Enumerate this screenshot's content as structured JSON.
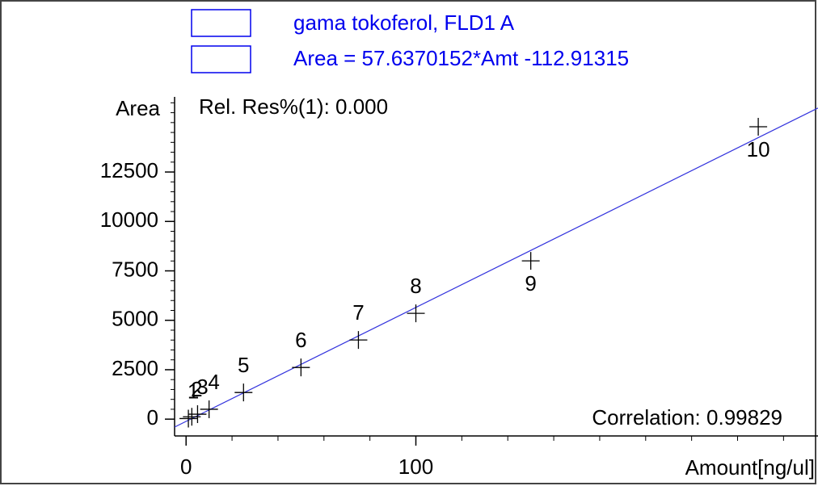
{
  "chart_data": {
    "type": "scatter",
    "legend_title": "gama tokoferol, FLD1 A",
    "legend_equation": "Area = 57.6370152*Amt -112.91315",
    "annotation_top": "Rel. Res%(1): 0.000",
    "annotation_bottom": "Correlation: 0.99829",
    "y_label": "Area",
    "x_label": "Amount[ng/ul]",
    "x": [
      1,
      2.5,
      5,
      10,
      25,
      50,
      75,
      100,
      150,
      249
    ],
    "values": [
      30,
      120,
      250,
      500,
      1348,
      2614,
      4003,
      5351,
      8006,
      14790
    ],
    "labels": [
      "1",
      "2",
      "3",
      "4",
      "5",
      "6",
      "7",
      "8",
      "9",
      "10"
    ],
    "color": "#000000",
    "fit": {
      "slope": 57.6370152,
      "intercept": -112.91315,
      "color": "#3333dd"
    },
    "xlim": [
      -5,
      275
    ],
    "ylim": [
      -850,
      16300
    ],
    "xticks": [
      0,
      100
    ],
    "xminor_ticks": [
      20,
      40,
      60,
      80,
      120,
      140,
      160,
      180,
      200,
      220,
      240,
      260
    ],
    "yticks": [
      0,
      2500,
      5000,
      7500,
      10000,
      12500
    ],
    "yminor_ticks": [
      500,
      1000,
      1500,
      2000,
      3000,
      3500,
      4000,
      4500,
      5500,
      6000,
      6500,
      7000,
      8000,
      8500,
      9000,
      9500,
      10500,
      11000,
      11500,
      12000,
      13000,
      13500,
      14000,
      14500,
      15000,
      15500,
      16000
    ]
  }
}
